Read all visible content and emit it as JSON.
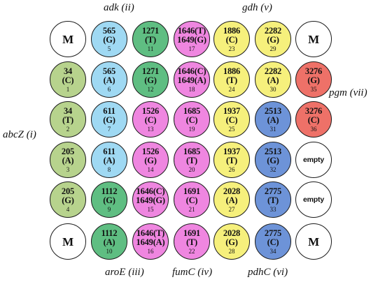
{
  "colors": {
    "abcZ": "#b7d38d",
    "adk": "#9fd9f3",
    "aroE": "#5fbe82",
    "fumC": "#ef86e0",
    "gdh": "#f6f07c",
    "pdhC": "#6d93d8",
    "pgm": "#ee7168",
    "none": "#ffffff"
  },
  "gene_labels": {
    "adk": "adk (ii)",
    "gdh": "gdh (v)",
    "pgm": "pgm (vii)",
    "abcZ": "abcZ (i)",
    "aroE": "aroE (iii)",
    "fumC": "fumC (iv)",
    "pdhC": "pdhC (vi)"
  },
  "wells": [
    [
      {
        "l1": "M",
        "l2": "",
        "num": "",
        "gene": "none",
        "kind": "marker"
      },
      {
        "l1": "565",
        "l2": "(G)",
        "num": "5",
        "gene": "adk",
        "kind": "snp"
      },
      {
        "l1": "1271",
        "l2": "(T)",
        "num": "11",
        "gene": "aroE",
        "kind": "snp"
      },
      {
        "l1": "1646(T)",
        "l2": "1649(G)",
        "num": "17",
        "gene": "fumC",
        "kind": "snp"
      },
      {
        "l1": "1886",
        "l2": "(C)",
        "num": "23",
        "gene": "gdh",
        "kind": "snp"
      },
      {
        "l1": "2282",
        "l2": "(G)",
        "num": "29",
        "gene": "gdh",
        "kind": "snp"
      },
      {
        "l1": "M",
        "l2": "",
        "num": "",
        "gene": "none",
        "kind": "marker"
      }
    ],
    [
      {
        "l1": "34",
        "l2": "(C)",
        "num": "1",
        "gene": "abcZ",
        "kind": "snp"
      },
      {
        "l1": "565",
        "l2": "(A)",
        "num": "6",
        "gene": "adk",
        "kind": "snp"
      },
      {
        "l1": "1271",
        "l2": "(G)",
        "num": "12",
        "gene": "aroE",
        "kind": "snp"
      },
      {
        "l1": "1646(C)",
        "l2": "1649(A)",
        "num": "18",
        "gene": "fumC",
        "kind": "snp"
      },
      {
        "l1": "1886",
        "l2": "(T)",
        "num": "24",
        "gene": "gdh",
        "kind": "snp"
      },
      {
        "l1": "2282",
        "l2": "(A)",
        "num": "30",
        "gene": "gdh",
        "kind": "snp"
      },
      {
        "l1": "3276",
        "l2": "(G)",
        "num": "35",
        "gene": "pgm",
        "kind": "snp"
      }
    ],
    [
      {
        "l1": "34",
        "l2": "(T)",
        "num": "2",
        "gene": "abcZ",
        "kind": "snp"
      },
      {
        "l1": "611",
        "l2": "(G)",
        "num": "7",
        "gene": "adk",
        "kind": "snp"
      },
      {
        "l1": "1526",
        "l2": "(C)",
        "num": "13",
        "gene": "fumC",
        "kind": "snp"
      },
      {
        "l1": "1685",
        "l2": "(C)",
        "num": "19",
        "gene": "fumC",
        "kind": "snp"
      },
      {
        "l1": "1937",
        "l2": "(C)",
        "num": "25",
        "gene": "gdh",
        "kind": "snp"
      },
      {
        "l1": "2513",
        "l2": "(A)",
        "num": "31",
        "gene": "pdhC",
        "kind": "snp"
      },
      {
        "l1": "3276",
        "l2": "(C)",
        "num": "36",
        "gene": "pgm",
        "kind": "snp"
      }
    ],
    [
      {
        "l1": "205",
        "l2": "(A)",
        "num": "3",
        "gene": "abcZ",
        "kind": "snp"
      },
      {
        "l1": "611",
        "l2": "(A)",
        "num": "8",
        "gene": "adk",
        "kind": "snp"
      },
      {
        "l1": "1526",
        "l2": "(G)",
        "num": "14",
        "gene": "fumC",
        "kind": "snp"
      },
      {
        "l1": "1685",
        "l2": "(T)",
        "num": "20",
        "gene": "fumC",
        "kind": "snp"
      },
      {
        "l1": "1937",
        "l2": "(T)",
        "num": "26",
        "gene": "gdh",
        "kind": "snp"
      },
      {
        "l1": "2513",
        "l2": "(G)",
        "num": "32",
        "gene": "pdhC",
        "kind": "snp"
      },
      {
        "l1": "empty",
        "l2": "",
        "num": "",
        "gene": "none",
        "kind": "empty"
      }
    ],
    [
      {
        "l1": "205",
        "l2": "(G)",
        "num": "4",
        "gene": "abcZ",
        "kind": "snp"
      },
      {
        "l1": "1112",
        "l2": "(G)",
        "num": "9",
        "gene": "aroE",
        "kind": "snp"
      },
      {
        "l1": "1646(C)",
        "l2": "1649(G)",
        "num": "15",
        "gene": "fumC",
        "kind": "snp"
      },
      {
        "l1": "1691",
        "l2": "(C)",
        "num": "21",
        "gene": "fumC",
        "kind": "snp"
      },
      {
        "l1": "2028",
        "l2": "(A)",
        "num": "27",
        "gene": "gdh",
        "kind": "snp"
      },
      {
        "l1": "2775",
        "l2": "(T)",
        "num": "33",
        "gene": "pdhC",
        "kind": "snp"
      },
      {
        "l1": "empty",
        "l2": "",
        "num": "",
        "gene": "none",
        "kind": "empty"
      }
    ],
    [
      {
        "l1": "M",
        "l2": "",
        "num": "",
        "gene": "none",
        "kind": "marker"
      },
      {
        "l1": "1112",
        "l2": "(A)",
        "num": "10",
        "gene": "aroE",
        "kind": "snp"
      },
      {
        "l1": "1646(T)",
        "l2": "1649(A)",
        "num": "16",
        "gene": "fumC",
        "kind": "snp"
      },
      {
        "l1": "1691",
        "l2": "(T)",
        "num": "22",
        "gene": "fumC",
        "kind": "snp"
      },
      {
        "l1": "2028",
        "l2": "(G)",
        "num": "28",
        "gene": "gdh",
        "kind": "snp"
      },
      {
        "l1": "2775",
        "l2": "(C)",
        "num": "34",
        "gene": "pdhC",
        "kind": "snp"
      },
      {
        "l1": "M",
        "l2": "",
        "num": "",
        "gene": "none",
        "kind": "marker"
      }
    ]
  ]
}
